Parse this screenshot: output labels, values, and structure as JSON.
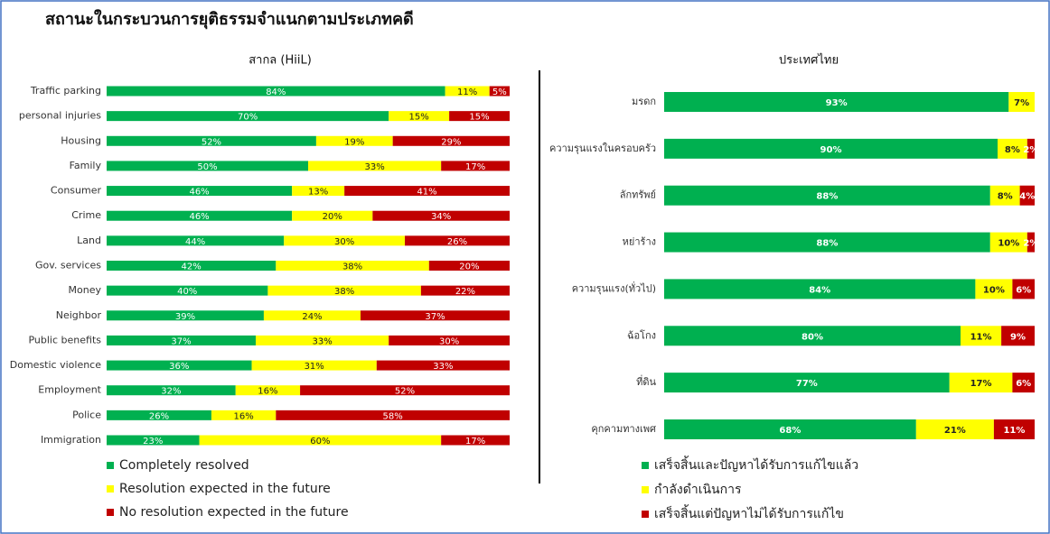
{
  "title": "สถานะในกระบวนการยุติธรรมจำแนกตามประเภทคดี",
  "chart_data": [
    {
      "type": "stacked_bar",
      "orientation": "horizontal",
      "title": "สากล (HiiL)",
      "xlim": [
        0,
        100
      ],
      "categories": [
        "Traffic parking",
        "personal injuries",
        "Housing",
        "Family",
        "Consumer",
        "Crime",
        "Land",
        "Gov. services",
        "Money",
        "Neighbor",
        "Public benefits",
        "Domestic violence",
        "Employment",
        "Police",
        "Immigration"
      ],
      "series": [
        {
          "name": "Completely resolved",
          "color": "#00b050",
          "values": [
            84,
            70,
            52,
            50,
            46,
            46,
            44,
            42,
            40,
            39,
            37,
            36,
            32,
            26,
            23
          ],
          "value_labels": [
            "84%",
            "70%",
            "52%",
            "50%",
            "46%",
            "46%",
            "44%",
            "42%",
            "40%",
            "39%",
            "37%",
            "36%",
            "32%",
            "26%",
            "23%"
          ]
        },
        {
          "name": "Resolution expected in the future",
          "color": "#ffff00",
          "values": [
            11,
            15,
            19,
            33,
            13,
            20,
            30,
            38,
            38,
            24,
            33,
            31,
            16,
            16,
            60
          ],
          "value_labels": [
            "11%",
            "15%",
            "19%",
            "33%",
            "13%",
            "20%",
            "30%",
            "38%",
            "38%",
            "24%",
            "33%",
            "31%",
            "16%",
            "16%",
            "60%"
          ]
        },
        {
          "name": "No resolution expected in the future",
          "color": "#c00000",
          "values": [
            5,
            15,
            29,
            17,
            41,
            34,
            26,
            20,
            22,
            37,
            30,
            33,
            52,
            58,
            17
          ],
          "value_labels": [
            "5%",
            "15%",
            "29%",
            "17%",
            "41%",
            "34%",
            "26%",
            "20%",
            "22%",
            "37%",
            "30%",
            "33%",
            "52%",
            "58%",
            "17%"
          ]
        }
      ]
    },
    {
      "type": "stacked_bar",
      "orientation": "horizontal",
      "title": "ประเทศไทย",
      "xlim": [
        0,
        100
      ],
      "categories": [
        "มรดก",
        "ความรุนแรงในครอบครัว",
        "ลักทรัพย์",
        "หย่าร้าง",
        "ความรุนแรง(ทั่วไป)",
        "ฉ้อโกง",
        "ที่ดิน",
        "คุกคามทางเพศ"
      ],
      "series": [
        {
          "name": "เสร็จสิ้นและปัญหาได้รับการแก้ไขแล้ว",
          "color": "#00b050",
          "values": [
            93,
            90,
            88,
            88,
            84,
            80,
            77,
            68
          ],
          "value_labels": [
            "93%",
            "90%",
            "88%",
            "88%",
            "84%",
            "80%",
            "77%",
            "68%"
          ]
        },
        {
          "name": "กำลังดำเนินการ",
          "color": "#ffff00",
          "values": [
            7,
            8,
            8,
            10,
            10,
            11,
            17,
            21
          ],
          "value_labels": [
            "7%",
            "8%",
            "8%",
            "10%",
            "10%",
            "11%",
            "17%",
            "21%"
          ]
        },
        {
          "name": "เสร็จสิ้นแต่ปัญหาไม่ได้รับการแก้ไข",
          "color": "#c00000",
          "values": [
            null,
            2,
            4,
            2,
            6,
            9,
            6,
            11
          ],
          "value_labels": [
            null,
            "2%",
            "4%",
            "2%",
            "6%",
            "9%",
            "6%",
            "11%"
          ]
        }
      ]
    }
  ]
}
